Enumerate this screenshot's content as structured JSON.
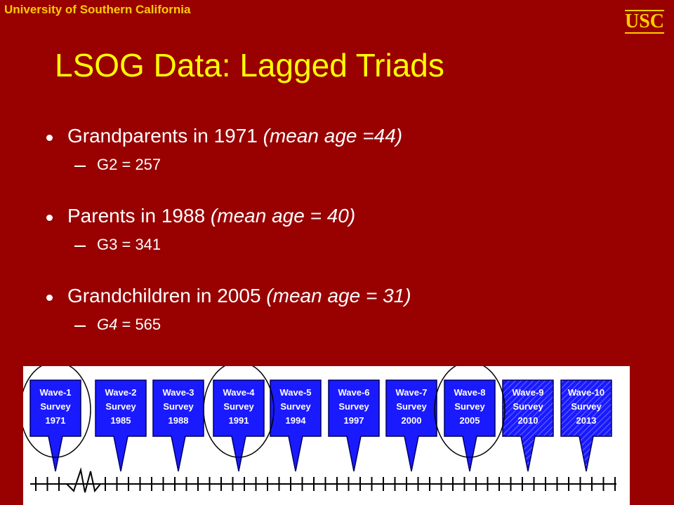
{
  "header": {
    "institution": "University of Southern California",
    "logo": "USC"
  },
  "title": "LSOG Data: Lagged Triads",
  "bullets": [
    {
      "text": "Grandparents in 1971",
      "note": "(mean age =44)",
      "sub": {
        "group": "G2",
        "count": "= 257"
      }
    },
    {
      "text": "Parents in 1988",
      "note": "(mean age = 40)",
      "sub": {
        "group": "G3",
        "count": "= 341"
      }
    },
    {
      "text": "Grandchildren in 2005",
      "note": "(mean age = 31)",
      "sub": {
        "group": "G4",
        "count": "= 565"
      }
    }
  ],
  "timeline": [
    {
      "wave": "Wave-1",
      "label": "Survey",
      "year": "1971"
    },
    {
      "wave": "Wave-2",
      "label": "Survey",
      "year": "1985"
    },
    {
      "wave": "Wave-3",
      "label": "Survey",
      "year": "1988"
    },
    {
      "wave": "Wave-4",
      "label": "Survey",
      "year": "1991"
    },
    {
      "wave": "Wave-5",
      "label": "Survey",
      "year": "1994"
    },
    {
      "wave": "Wave-6",
      "label": "Survey",
      "year": "1997"
    },
    {
      "wave": "Wave-7",
      "label": "Survey",
      "year": "2000"
    },
    {
      "wave": "Wave-8",
      "label": "Survey",
      "year": "2005"
    },
    {
      "wave": "Wave-9",
      "label": "Survey",
      "year": "2010"
    },
    {
      "wave": "Wave-10",
      "label": "Survey",
      "year": "2013"
    }
  ]
}
